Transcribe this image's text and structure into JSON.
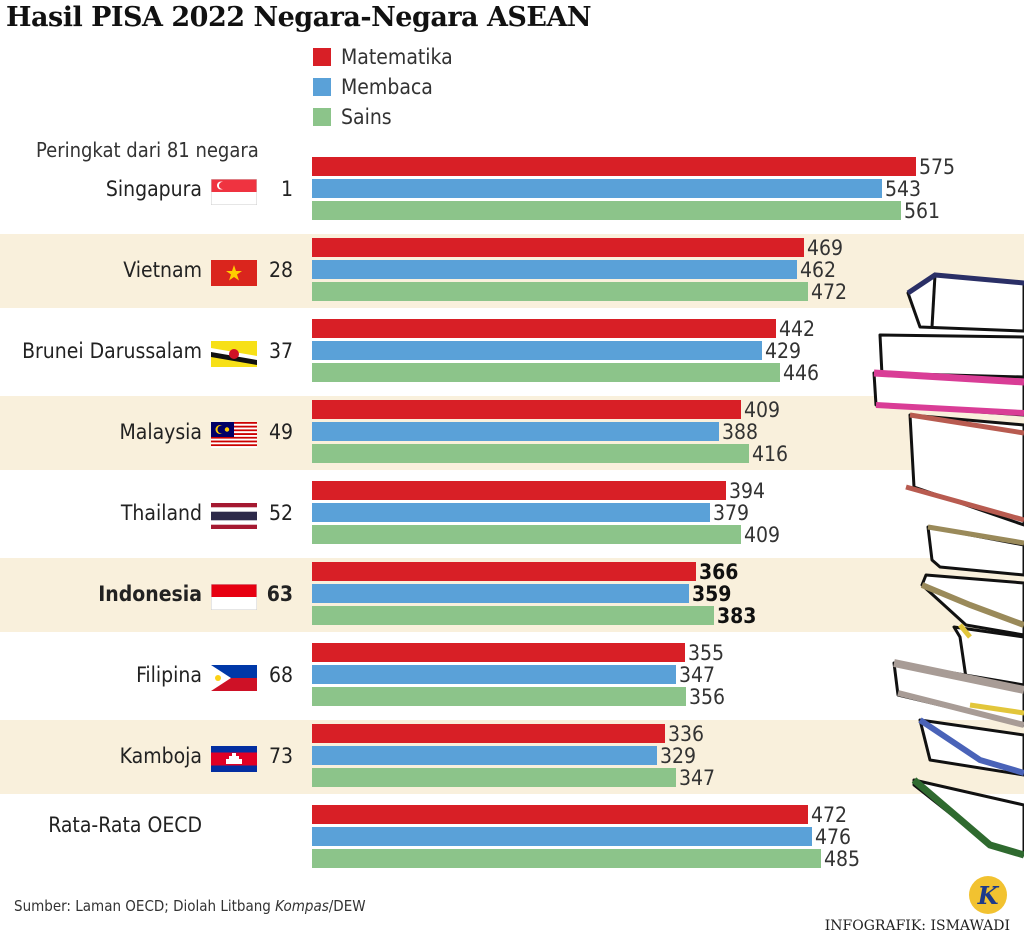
{
  "title": "Hasil PISA 2022 Negara-Negara ASEAN",
  "legend": [
    {
      "label": "Matematika",
      "color": "#d81f26"
    },
    {
      "label": "Membaca",
      "color": "#5aa1d8"
    },
    {
      "label": "Sains",
      "color": "#8cc48a"
    }
  ],
  "rank_header": "Peringkat dari 81 negara",
  "chart_data": {
    "type": "bar",
    "orientation": "horizontal",
    "series": [
      {
        "name": "Matematika",
        "values": [
          575,
          469,
          442,
          409,
          394,
          366,
          355,
          336,
          472
        ]
      },
      {
        "name": "Membaca",
        "values": [
          543,
          462,
          429,
          388,
          379,
          359,
          347,
          329,
          476
        ]
      },
      {
        "name": "Sains",
        "values": [
          561,
          472,
          446,
          416,
          409,
          383,
          356,
          347,
          485
        ]
      }
    ],
    "categories": [
      "Singapura",
      "Vietnam",
      "Brunei Darussalam",
      "Malaysia",
      "Thailand",
      "Indonesia",
      "Filipina",
      "Kamboja",
      "Rata-Rata OECD"
    ],
    "ranks": [
      "1",
      "28",
      "37",
      "49",
      "52",
      "63",
      "68",
      "73",
      ""
    ],
    "flags": [
      "singapore-flag",
      "vietnam-flag",
      "brunei-flag",
      "malaysia-flag",
      "thailand-flag",
      "indonesia-flag",
      "philippines-flag",
      "cambodia-flag",
      ""
    ],
    "highlight": "Indonesia",
    "xlim": [
      0,
      600
    ]
  },
  "source": {
    "prefix": "Sumber: Laman OECD; Diolah Litbang ",
    "italic": "Kompas",
    "suffix": "/DEW"
  },
  "credit": "INFOGRAFIK: ISMAWADI",
  "logo_letter": "K"
}
